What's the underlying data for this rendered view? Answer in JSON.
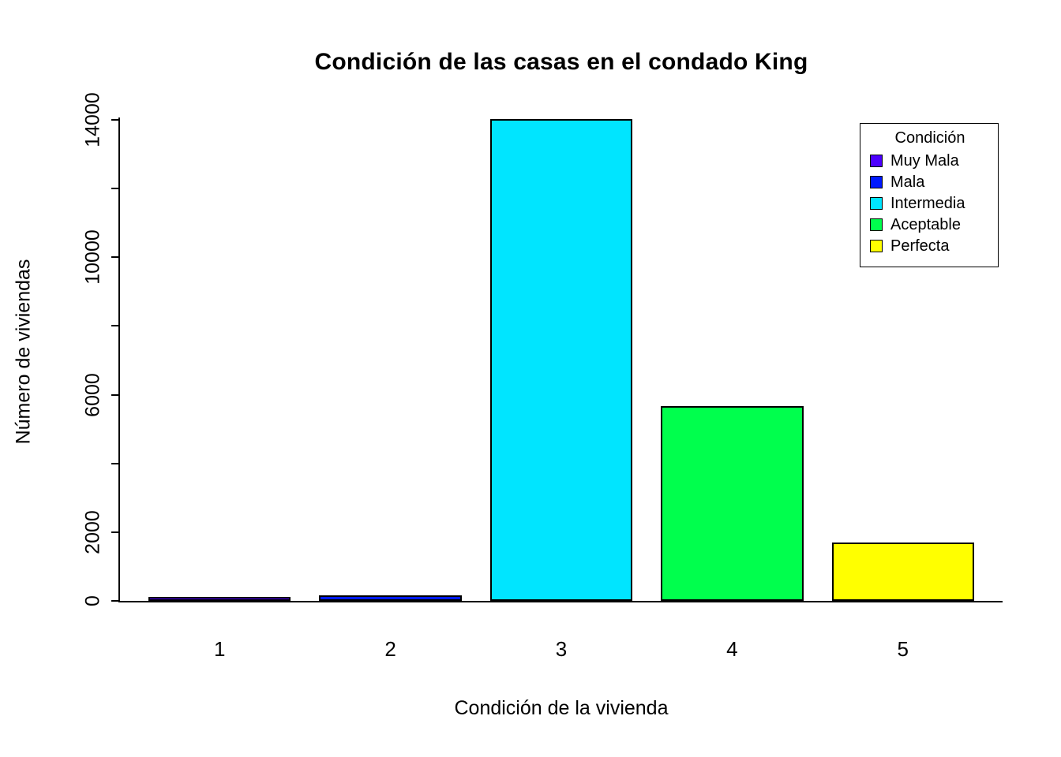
{
  "chart_data": {
    "type": "bar",
    "title": "Condición de las casas en el condado King",
    "xlabel": "Condición de la vivienda",
    "ylabel": "Número de viviendas",
    "categories": [
      "1",
      "2",
      "3",
      "4",
      "5"
    ],
    "values": [
      30,
      172,
      14031,
      5679,
      1701
    ],
    "bar_colors": [
      "#4C00FF",
      "#0019FF",
      "#00E5FF",
      "#00FF4D",
      "#FFFF00"
    ],
    "ylim": [
      0,
      14000
    ],
    "ytick_marks": [
      0,
      2000,
      4000,
      6000,
      8000,
      10000,
      12000,
      14000
    ],
    "ytick_labels": [
      "0",
      "2000",
      "6000",
      "10000",
      "14000"
    ],
    "grid": false,
    "background": "#ffffff",
    "axis_color": "#000000",
    "legend": {
      "title": "Condición",
      "position": "top-right",
      "entries": [
        {
          "label": "Muy Mala",
          "color": "#4C00FF"
        },
        {
          "label": "Mala",
          "color": "#0019FF"
        },
        {
          "label": "Intermedia",
          "color": "#00E5FF"
        },
        {
          "label": "Aceptable",
          "color": "#00FF4D"
        },
        {
          "label": "Perfecta",
          "color": "#FFFF00"
        }
      ]
    }
  }
}
